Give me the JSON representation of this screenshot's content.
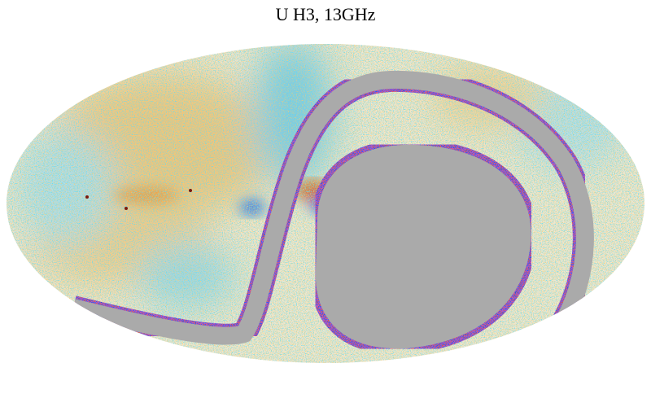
{
  "title": "U H3, 13GHz"
}
